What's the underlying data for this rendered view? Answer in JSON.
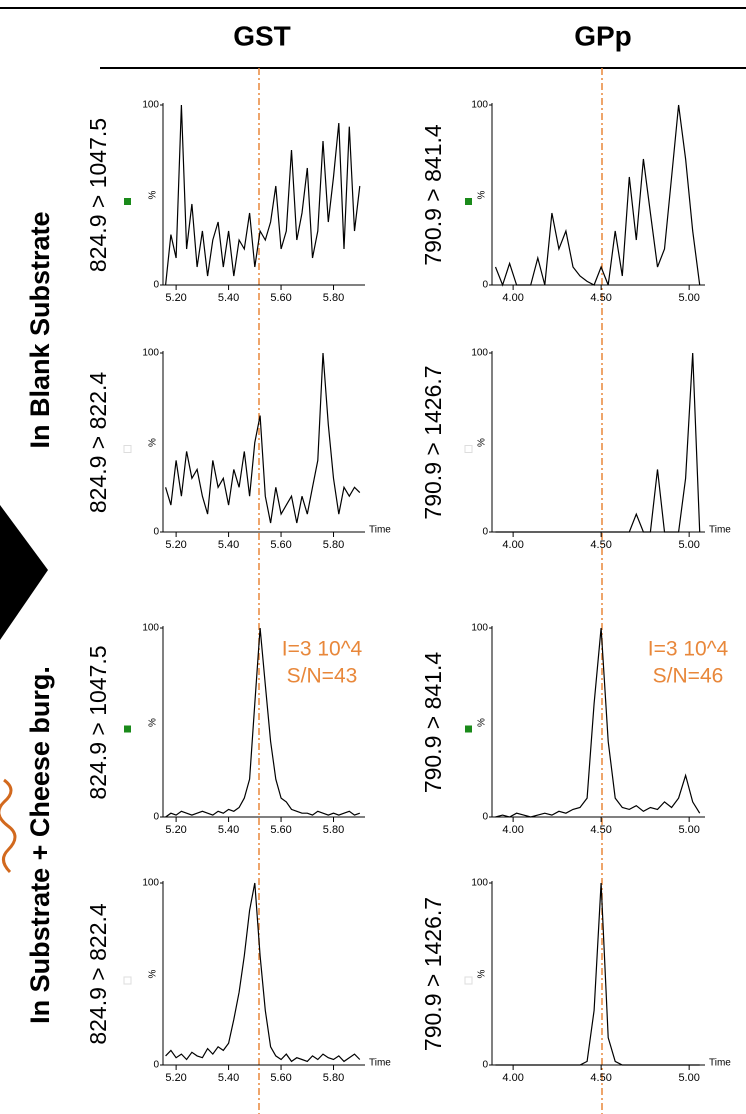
{
  "header": {
    "columns": [
      "GST",
      "GPp"
    ],
    "rows": [
      "In Blank Substrate",
      "In Substrate + Cheese burg."
    ]
  },
  "chart_data": [
    {
      "type": "line",
      "ylabel": "824.9 > 1047.5",
      "color": "#000000",
      "x": [
        5.16,
        5.18,
        5.2,
        5.22,
        5.24,
        5.26,
        5.28,
        5.3,
        5.32,
        5.34,
        5.36,
        5.38,
        5.4,
        5.42,
        5.44,
        5.46,
        5.48,
        5.5,
        5.52,
        5.54,
        5.56,
        5.58,
        5.6,
        5.62,
        5.64,
        5.66,
        5.68,
        5.7,
        5.72,
        5.74,
        5.76,
        5.78,
        5.8,
        5.82,
        5.84,
        5.86,
        5.88,
        5.9
      ],
      "values": [
        0,
        28,
        15,
        100,
        20,
        45,
        10,
        30,
        5,
        25,
        35,
        10,
        30,
        5,
        25,
        20,
        40,
        10,
        30,
        25,
        35,
        55,
        20,
        30,
        75,
        25,
        40,
        65,
        15,
        30,
        80,
        35,
        60,
        90,
        20,
        88,
        30,
        55
      ],
      "xlim": [
        5.15,
        5.92
      ],
      "ylim": [
        0,
        100
      ],
      "xticks": [
        {
          "value": 5.2,
          "label": "5.20"
        },
        {
          "value": 5.4,
          "label": "5.40"
        },
        {
          "value": 5.6,
          "label": "5.60"
        },
        {
          "value": 5.8,
          "label": "5.80"
        }
      ],
      "yticks": [
        0,
        100
      ],
      "y_unit": "%"
    },
    {
      "type": "line",
      "ylabel": "790.9 > 841.4",
      "color": "#000000",
      "x": [
        3.9,
        3.94,
        3.98,
        4.02,
        4.06,
        4.1,
        4.14,
        4.18,
        4.22,
        4.26,
        4.3,
        4.34,
        4.38,
        4.42,
        4.46,
        4.5,
        4.54,
        4.58,
        4.62,
        4.66,
        4.7,
        4.74,
        4.78,
        4.82,
        4.86,
        4.9,
        4.94,
        4.98,
        5.02,
        5.06
      ],
      "values": [
        10,
        0,
        12,
        0,
        0,
        0,
        15,
        0,
        40,
        20,
        30,
        10,
        5,
        2,
        0,
        10,
        0,
        30,
        5,
        60,
        25,
        70,
        40,
        10,
        20,
        60,
        100,
        70,
        30,
        0
      ],
      "xlim": [
        3.88,
        5.09
      ],
      "ylim": [
        0,
        100
      ],
      "xticks": [
        {
          "value": 4,
          "label": "4.00"
        },
        {
          "value": 4.5,
          "label": "4.50"
        },
        {
          "value": 5,
          "label": "5.00"
        }
      ],
      "yticks": [
        0,
        100
      ],
      "y_unit": "%"
    },
    {
      "type": "line",
      "ylabel": "824.9 > 822.4",
      "color": "#000000",
      "xlabel": "Time",
      "x": [
        5.16,
        5.18,
        5.2,
        5.22,
        5.24,
        5.26,
        5.28,
        5.3,
        5.32,
        5.34,
        5.36,
        5.38,
        5.4,
        5.42,
        5.44,
        5.46,
        5.48,
        5.5,
        5.52,
        5.54,
        5.56,
        5.58,
        5.6,
        5.62,
        5.64,
        5.66,
        5.68,
        5.7,
        5.72,
        5.74,
        5.76,
        5.78,
        5.8,
        5.82,
        5.84,
        5.86,
        5.88,
        5.9
      ],
      "values": [
        25,
        15,
        40,
        20,
        45,
        30,
        35,
        20,
        10,
        40,
        25,
        30,
        15,
        35,
        25,
        45,
        20,
        50,
        65,
        20,
        5,
        25,
        10,
        15,
        20,
        5,
        20,
        10,
        25,
        40,
        100,
        60,
        30,
        10,
        25,
        20,
        25,
        22
      ],
      "xlim": [
        5.15,
        5.92
      ],
      "ylim": [
        0,
        100
      ],
      "xticks": [
        {
          "value": 5.2,
          "label": "5.20"
        },
        {
          "value": 5.4,
          "label": "5.40"
        },
        {
          "value": 5.6,
          "label": "5.60"
        },
        {
          "value": 5.8,
          "label": "5.80"
        }
      ],
      "yticks": [
        0,
        100
      ],
      "y_unit": "%"
    },
    {
      "type": "line",
      "ylabel": "790.9 > 1426.7",
      "color": "#000000",
      "xlabel": "Time",
      "x": [
        3.9,
        3.94,
        3.98,
        4.02,
        4.06,
        4.1,
        4.14,
        4.18,
        4.22,
        4.26,
        4.3,
        4.34,
        4.38,
        4.42,
        4.46,
        4.5,
        4.54,
        4.58,
        4.62,
        4.66,
        4.7,
        4.74,
        4.78,
        4.82,
        4.86,
        4.9,
        4.94,
        4.98,
        5.02,
        5.06
      ],
      "values": [
        0,
        0,
        0,
        0,
        0,
        0,
        0,
        0,
        0,
        0,
        0,
        0,
        0,
        0,
        0,
        0,
        0,
        0,
        0,
        0,
        10,
        0,
        0,
        35,
        0,
        0,
        0,
        30,
        100,
        0
      ],
      "xlim": [
        3.88,
        5.09
      ],
      "ylim": [
        0,
        100
      ],
      "xticks": [
        {
          "value": 4,
          "label": "4.00"
        },
        {
          "value": 4.5,
          "label": "4.50"
        },
        {
          "value": 5,
          "label": "5.00"
        }
      ],
      "yticks": [
        0,
        100
      ],
      "y_unit": "%"
    },
    {
      "type": "line",
      "ylabel": "824.9 > 1047.5",
      "color": "#000000",
      "annotations": [
        "I=3 10^4",
        "S/N=43"
      ],
      "x": [
        5.16,
        5.18,
        5.2,
        5.22,
        5.24,
        5.26,
        5.28,
        5.3,
        5.32,
        5.34,
        5.36,
        5.38,
        5.4,
        5.42,
        5.44,
        5.46,
        5.48,
        5.5,
        5.52,
        5.54,
        5.56,
        5.58,
        5.6,
        5.62,
        5.64,
        5.66,
        5.68,
        5.7,
        5.72,
        5.74,
        5.76,
        5.78,
        5.8,
        5.82,
        5.84,
        5.86,
        5.88,
        5.9
      ],
      "values": [
        0,
        2,
        1,
        3,
        2,
        1,
        2,
        3,
        2,
        1,
        3,
        2,
        4,
        3,
        5,
        10,
        20,
        60,
        100,
        70,
        40,
        20,
        10,
        8,
        4,
        3,
        2,
        2,
        1,
        3,
        2,
        1,
        2,
        1,
        2,
        3,
        1,
        2
      ],
      "xlim": [
        5.15,
        5.92
      ],
      "ylim": [
        0,
        100
      ],
      "xticks": [
        {
          "value": 5.2,
          "label": "5.20"
        },
        {
          "value": 5.4,
          "label": "5.40"
        },
        {
          "value": 5.6,
          "label": "5.60"
        },
        {
          "value": 5.8,
          "label": "5.80"
        }
      ],
      "yticks": [
        0,
        100
      ],
      "y_unit": "%"
    },
    {
      "type": "line",
      "ylabel": "790.9 > 841.4",
      "color": "#000000",
      "annotations": [
        "I=3 10^4",
        "S/N=46"
      ],
      "x": [
        3.9,
        3.94,
        3.98,
        4.02,
        4.06,
        4.1,
        4.14,
        4.18,
        4.22,
        4.26,
        4.3,
        4.34,
        4.38,
        4.42,
        4.46,
        4.5,
        4.54,
        4.58,
        4.62,
        4.66,
        4.7,
        4.74,
        4.78,
        4.82,
        4.86,
        4.9,
        4.94,
        4.98,
        5.02,
        5.06
      ],
      "values": [
        0,
        1,
        0,
        2,
        1,
        0,
        1,
        2,
        1,
        3,
        2,
        4,
        5,
        10,
        60,
        100,
        40,
        10,
        5,
        4,
        6,
        3,
        5,
        4,
        8,
        5,
        10,
        22,
        8,
        2
      ],
      "xlim": [
        3.88,
        5.09
      ],
      "ylim": [
        0,
        100
      ],
      "xticks": [
        {
          "value": 4,
          "label": "4.00"
        },
        {
          "value": 4.5,
          "label": "4.50"
        },
        {
          "value": 5,
          "label": "5.00"
        }
      ],
      "yticks": [
        0,
        100
      ],
      "y_unit": "%"
    },
    {
      "type": "line",
      "ylabel": "824.9 > 822.4",
      "color": "#000000",
      "xlabel": "Time",
      "x": [
        5.16,
        5.18,
        5.2,
        5.22,
        5.24,
        5.26,
        5.28,
        5.3,
        5.32,
        5.34,
        5.36,
        5.38,
        5.4,
        5.42,
        5.44,
        5.46,
        5.48,
        5.5,
        5.52,
        5.54,
        5.56,
        5.58,
        5.6,
        5.62,
        5.64,
        5.66,
        5.68,
        5.7,
        5.72,
        5.74,
        5.76,
        5.78,
        5.8,
        5.82,
        5.84,
        5.86,
        5.88,
        5.9
      ],
      "values": [
        5,
        8,
        4,
        6,
        3,
        7,
        5,
        4,
        9,
        6,
        10,
        8,
        12,
        25,
        40,
        60,
        85,
        100,
        60,
        30,
        10,
        5,
        3,
        6,
        2,
        4,
        3,
        2,
        5,
        3,
        6,
        4,
        3,
        5,
        2,
        4,
        6,
        3
      ],
      "xlim": [
        5.15,
        5.92
      ],
      "ylim": [
        0,
        100
      ],
      "xticks": [
        {
          "value": 5.2,
          "label": "5.20"
        },
        {
          "value": 5.4,
          "label": "5.40"
        },
        {
          "value": 5.6,
          "label": "5.60"
        },
        {
          "value": 5.8,
          "label": "5.80"
        }
      ],
      "yticks": [
        0,
        100
      ],
      "y_unit": "%"
    },
    {
      "type": "line",
      "ylabel": "790.9 > 1426.7",
      "color": "#000000",
      "xlabel": "Time",
      "x": [
        3.9,
        3.94,
        3.98,
        4.02,
        4.06,
        4.1,
        4.14,
        4.18,
        4.22,
        4.26,
        4.3,
        4.34,
        4.38,
        4.42,
        4.46,
        4.5,
        4.54,
        4.58,
        4.62,
        4.66,
        4.7,
        4.74,
        4.78,
        4.82,
        4.86,
        4.9,
        4.94,
        4.98,
        5.02,
        5.06
      ],
      "values": [
        0,
        0,
        0,
        0,
        0,
        0,
        0,
        0,
        0,
        0,
        0,
        0,
        0,
        2,
        30,
        100,
        15,
        2,
        0,
        0,
        0,
        0,
        0,
        0,
        0,
        0,
        0,
        0,
        0,
        0
      ],
      "xlim": [
        3.88,
        5.09
      ],
      "ylim": [
        0,
        100
      ],
      "xticks": [
        {
          "value": 4,
          "label": "4.00"
        },
        {
          "value": 4.5,
          "label": "4.50"
        },
        {
          "value": 5,
          "label": "5.00"
        }
      ],
      "yticks": [
        0,
        100
      ],
      "y_unit": "%"
    }
  ]
}
